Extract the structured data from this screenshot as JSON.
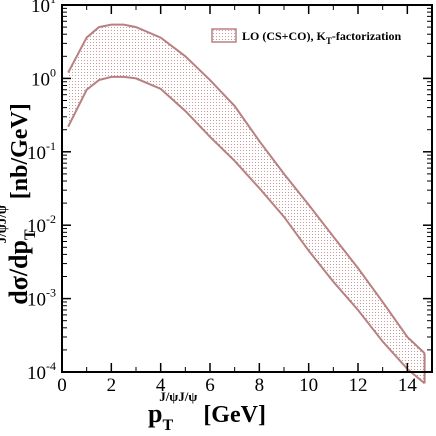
{
  "chart_data": {
    "type": "area",
    "x": [
      0.25,
      1.0,
      1.5,
      2.0,
      2.5,
      3.0,
      4.0,
      5.0,
      6.0,
      7.0,
      8.0,
      9.0,
      10.0,
      11.0,
      12.0,
      13.0,
      14.0,
      14.7
    ],
    "series": [
      {
        "name": "LO (CS+CO), K",
        "name_subscript": "T",
        "name_suffix": "-factorization",
        "upper": [
          1.2,
          3.6,
          5.0,
          5.4,
          5.4,
          5.0,
          3.6,
          2.0,
          0.95,
          0.42,
          0.14,
          0.05,
          0.019,
          0.007,
          0.0026,
          0.0009,
          0.0003,
          0.00018
        ],
        "lower": [
          0.22,
          0.7,
          0.95,
          1.05,
          1.05,
          1.0,
          0.72,
          0.36,
          0.16,
          0.075,
          0.032,
          0.013,
          0.0045,
          0.0017,
          0.0007,
          0.00026,
          0.00011,
          7e-05
        ],
        "color": "#b88080"
      }
    ],
    "xlim": [
      0,
      15
    ],
    "ylim": [
      0.0001,
      10
    ],
    "yscale": "log",
    "xticks": [
      "0",
      "2",
      "4",
      "6",
      "8",
      "10",
      "12",
      "14"
    ],
    "yticks": [
      {
        "base": "10",
        "exp": "1"
      },
      {
        "base": "10",
        "exp": "0"
      },
      {
        "base": "10",
        "exp": "-1"
      },
      {
        "base": "10",
        "exp": "-2"
      },
      {
        "base": "10",
        "exp": "-3"
      },
      {
        "base": "10",
        "exp": "-4"
      }
    ],
    "xlabel": {
      "main": "p",
      "sub": "T",
      "sup": "J/ψJ/ψ",
      "unit": " [GeV]"
    },
    "ylabel": {
      "main": "dσ/dp",
      "sub": "T",
      "sup": "J/ψJ/ψ",
      "unit": " [nb/GeV]"
    },
    "legend_position": "top-right",
    "grid": false
  }
}
